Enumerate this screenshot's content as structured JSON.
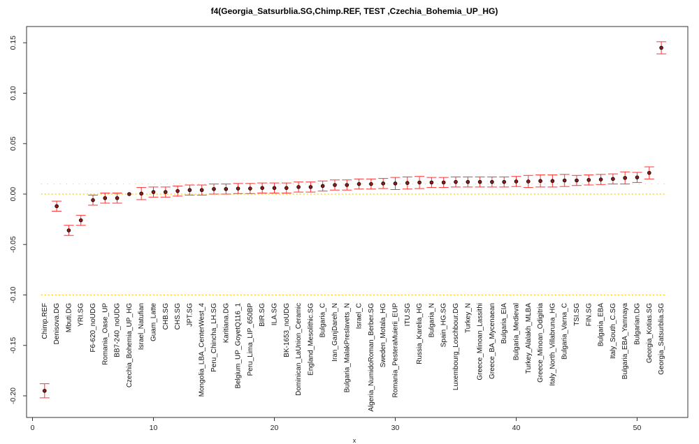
{
  "chart_data": {
    "type": "scatter",
    "title": "f4(Georgia_Satsurblia.SG,Chimp.REF, TEST ,Czechia_Bohemia_UP_HG)",
    "xlabel": "x",
    "ylabel": "",
    "xlim": [
      -1,
      55
    ],
    "ylim": [
      -0.21,
      0.165
    ],
    "xticks": [
      0,
      10,
      20,
      30,
      40,
      50
    ],
    "yticks": [
      -0.2,
      -0.15,
      -0.1,
      -0.05,
      0.0,
      0.05,
      0.1,
      0.15
    ],
    "ytick_labels": [
      "-0.20",
      "-0.15",
      "-0.10",
      "-0.05",
      "0.00",
      "0.05",
      "0.10",
      "0.15"
    ],
    "point_color": "#000000",
    "point_fill": "#8b1a1a",
    "errorbar_color": "#ff3333",
    "reference_line_color": "#ffcc00",
    "reference_lines": [
      0.0,
      -0.1,
      0.01
    ],
    "labels": [
      "Chimp.REF",
      "Denisova.DG",
      "Mbuti.DG",
      "YRI.SG",
      "F6-620_noUDG",
      "Romania_Oase_UP",
      "BB7-240_noUDG",
      "Czechia_Bohemia_UP_HG",
      "Israel_Natufian",
      "Guam_Latte",
      "CHB.SG",
      "CHS.SG",
      "JPT.SG",
      "Mongolia_LBA_CenterWest_4",
      "Peru_Chincha_LH.SG",
      "Karitiana.DG",
      "Belgium_UP_GoyetQ116_1",
      "Peru_Lima_LIP_650BP",
      "BIR.SG",
      "ILA.SG",
      "BK-1653_noUDG",
      "Dominican_LaUnion_Ceramic",
      "England_Mesolithic.SG",
      "Bulgaria_C",
      "Iran_GanjDareh_N",
      "Bulgaria_MalakPreslavets_N",
      "Israel_C",
      "Algeria_NumidoRoman_Berber.SG",
      "Sweden_Motala_HG",
      "Romania_PesteraMuierii_EUP",
      "ITU.SG",
      "Russia_Karelia_HG",
      "Bulgaria_N",
      "Spain_HG.SG",
      "Luxembourg_Loschbour.DG",
      "Turkey_N",
      "Greece_Minoan_Lassithi",
      "Greece_BA_Mycenaean",
      "Bulgaria_EIA",
      "Bulgaria_Medieval",
      "Turkey_Alalakh_MLBA",
      "Greece_Minoan_Odigitria",
      "Italy_North_Villabruna_HG",
      "Bulgaria_Varna_C",
      "TSI.SG",
      "FIN.SG",
      "Bulgaria_EBA",
      "Italy_South_C.SG",
      "Bulgaria_EBA_Yamnaya",
      "Bulgarian.DG",
      "Georgia_Kotias.SG",
      "Georgia_Satsurblia.SG"
    ],
    "x": [
      1,
      2,
      3,
      4,
      5,
      6,
      7,
      8,
      9,
      10,
      11,
      12,
      13,
      14,
      15,
      16,
      17,
      18,
      19,
      20,
      21,
      22,
      23,
      24,
      25,
      26,
      27,
      28,
      29,
      30,
      31,
      32,
      33,
      34,
      35,
      36,
      37,
      38,
      39,
      40,
      41,
      42,
      43,
      44,
      45,
      46,
      47,
      48,
      49,
      50,
      51,
      52
    ],
    "y": [
      -0.195,
      -0.012,
      -0.036,
      -0.026,
      -0.006,
      -0.004,
      -0.004,
      0.0,
      0.0005,
      0.002,
      0.002,
      0.003,
      0.004,
      0.004,
      0.005,
      0.005,
      0.0055,
      0.0055,
      0.006,
      0.006,
      0.006,
      0.007,
      0.007,
      0.008,
      0.009,
      0.009,
      0.01,
      0.01,
      0.0105,
      0.0105,
      0.011,
      0.0115,
      0.0115,
      0.0115,
      0.012,
      0.012,
      0.012,
      0.012,
      0.012,
      0.0125,
      0.0125,
      0.013,
      0.013,
      0.0135,
      0.0135,
      0.014,
      0.0145,
      0.015,
      0.016,
      0.0165,
      0.021,
      0.145
    ],
    "err": [
      0.007,
      0.005,
      0.005,
      0.005,
      0.005,
      0.005,
      0.005,
      0.0,
      0.006,
      0.005,
      0.005,
      0.005,
      0.005,
      0.005,
      0.005,
      0.005,
      0.005,
      0.005,
      0.005,
      0.005,
      0.005,
      0.005,
      0.005,
      0.005,
      0.005,
      0.005,
      0.005,
      0.005,
      0.005,
      0.006,
      0.006,
      0.006,
      0.005,
      0.005,
      0.005,
      0.005,
      0.005,
      0.005,
      0.005,
      0.005,
      0.006,
      0.006,
      0.006,
      0.006,
      0.005,
      0.005,
      0.005,
      0.005,
      0.006,
      0.005,
      0.006,
      0.006
    ]
  }
}
